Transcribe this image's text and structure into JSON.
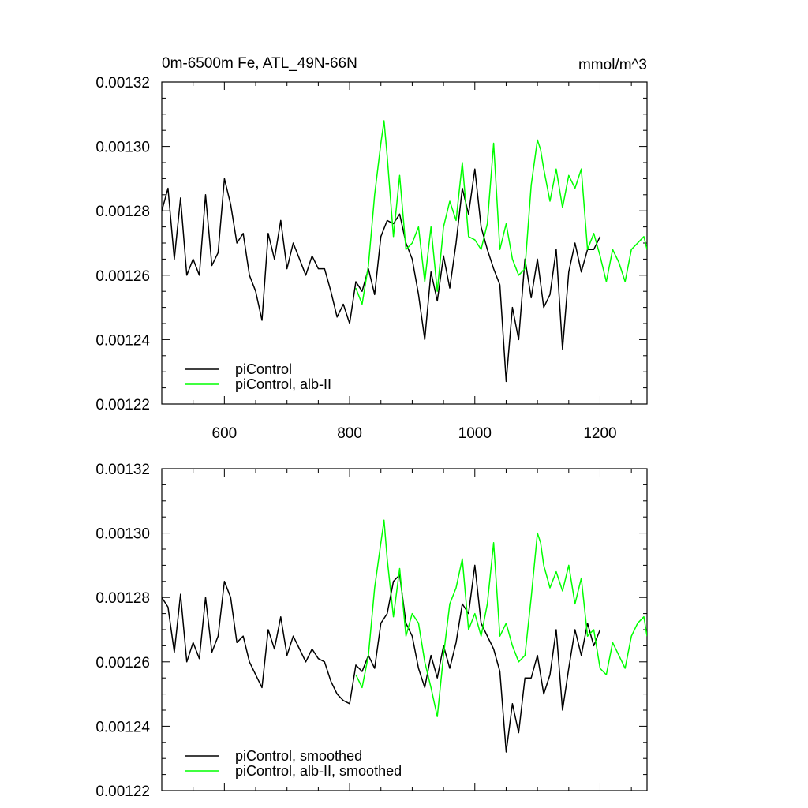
{
  "chart_data": [
    {
      "type": "line",
      "title": "0m-6500m Fe, ATL_49N-66N",
      "units": "mmol/m^3",
      "xlim": [
        500,
        1275
      ],
      "ylim": [
        0.00122,
        0.00132
      ],
      "x_ticks": [
        "600",
        "800",
        "1000",
        "1200"
      ],
      "y_ticks": [
        "0.00122",
        "0.00124",
        "0.00126",
        "0.00128",
        "0.00130",
        "0.00132"
      ],
      "legend_position": "bottom-left",
      "series": [
        {
          "name": "piControl",
          "color": "#000000",
          "x": [
            500,
            510,
            520,
            530,
            540,
            550,
            560,
            570,
            580,
            590,
            600,
            610,
            620,
            630,
            640,
            650,
            660,
            670,
            680,
            690,
            700,
            710,
            720,
            730,
            740,
            750,
            760,
            770,
            780,
            790,
            800,
            810,
            820,
            830,
            840,
            850,
            860,
            870,
            880,
            890,
            900,
            910,
            920,
            930,
            940,
            950,
            960,
            970,
            980,
            990,
            1000,
            1010,
            1020,
            1030,
            1040,
            1050,
            1060,
            1070,
            1080,
            1090,
            1100,
            1110,
            1120,
            1130,
            1140,
            1150,
            1160,
            1170,
            1180,
            1190,
            1200
          ],
          "values": [
            0.00128,
            0.001287,
            0.001265,
            0.001284,
            0.00126,
            0.001265,
            0.00126,
            0.001285,
            0.001263,
            0.001267,
            0.00129,
            0.001282,
            0.00127,
            0.001273,
            0.00126,
            0.001255,
            0.001246,
            0.001273,
            0.001265,
            0.001277,
            0.001262,
            0.00127,
            0.001265,
            0.00126,
            0.001266,
            0.001262,
            0.001262,
            0.001255,
            0.001247,
            0.001251,
            0.001245,
            0.001258,
            0.001255,
            0.001262,
            0.001254,
            0.001272,
            0.001277,
            0.001276,
            0.001279,
            0.00127,
            0.001265,
            0.001254,
            0.00124,
            0.001261,
            0.001252,
            0.001266,
            0.001256,
            0.00127,
            0.001287,
            0.001279,
            0.001293,
            0.001275,
            0.001268,
            0.001262,
            0.001257,
            0.001227,
            0.00125,
            0.00124,
            0.001265,
            0.001253,
            0.001265,
            0.00125,
            0.001254,
            0.001268,
            0.001237,
            0.001261,
            0.00127,
            0.001261,
            0.001268,
            0.001268,
            0.001272
          ]
        },
        {
          "name": "piControl, alb-II",
          "color": "#00ff00",
          "x": [
            810,
            820,
            830,
            840,
            850,
            855,
            860,
            870,
            880,
            890,
            900,
            910,
            920,
            930,
            940,
            950,
            960,
            970,
            980,
            990,
            1000,
            1010,
            1020,
            1030,
            1040,
            1050,
            1060,
            1070,
            1080,
            1090,
            1100,
            1105,
            1110,
            1120,
            1130,
            1140,
            1150,
            1160,
            1170,
            1180,
            1190,
            1200,
            1210,
            1220,
            1230,
            1240,
            1250,
            1260,
            1270,
            1275
          ],
          "values": [
            0.001256,
            0.001251,
            0.001263,
            0.001285,
            0.001301,
            0.001308,
            0.001297,
            0.001272,
            0.001291,
            0.001268,
            0.00127,
            0.001275,
            0.001258,
            0.001275,
            0.001255,
            0.001275,
            0.001283,
            0.001277,
            0.001295,
            0.001272,
            0.001271,
            0.001268,
            0.001276,
            0.001301,
            0.001268,
            0.001276,
            0.001265,
            0.00126,
            0.001262,
            0.001288,
            0.001302,
            0.001299,
            0.001293,
            0.001283,
            0.001293,
            0.001281,
            0.001291,
            0.001287,
            0.001293,
            0.001268,
            0.001273,
            0.001266,
            0.001258,
            0.001268,
            0.001264,
            0.001258,
            0.001268,
            0.00127,
            0.001272,
            0.001268
          ]
        }
      ]
    },
    {
      "type": "line",
      "xlim": [
        500,
        1275
      ],
      "ylim": [
        0.00122,
        0.00132
      ],
      "y_ticks": [
        "0.00122",
        "0.00124",
        "0.00126",
        "0.00128",
        "0.00130",
        "0.00132"
      ],
      "legend_position": "bottom-left",
      "series": [
        {
          "name": "piControl, smoothed",
          "color": "#000000",
          "x": [
            500,
            510,
            520,
            530,
            540,
            550,
            560,
            570,
            580,
            590,
            600,
            610,
            620,
            630,
            640,
            650,
            660,
            670,
            680,
            690,
            700,
            710,
            720,
            730,
            740,
            750,
            760,
            770,
            780,
            790,
            800,
            810,
            820,
            830,
            840,
            850,
            860,
            870,
            880,
            890,
            900,
            910,
            920,
            930,
            940,
            950,
            960,
            970,
            980,
            990,
            1000,
            1010,
            1020,
            1030,
            1040,
            1050,
            1060,
            1070,
            1080,
            1090,
            1100,
            1110,
            1120,
            1130,
            1140,
            1150,
            1160,
            1170,
            1180,
            1190,
            1200
          ],
          "values": [
            0.00128,
            0.001277,
            0.001263,
            0.001281,
            0.00126,
            0.001266,
            0.001261,
            0.00128,
            0.001263,
            0.001268,
            0.001285,
            0.00128,
            0.001266,
            0.001268,
            0.00126,
            0.001256,
            0.001252,
            0.00127,
            0.001264,
            0.001274,
            0.001262,
            0.001268,
            0.001264,
            0.00126,
            0.001264,
            0.001261,
            0.00126,
            0.001254,
            0.00125,
            0.001248,
            0.001247,
            0.001259,
            0.001257,
            0.001262,
            0.001258,
            0.001272,
            0.001275,
            0.001285,
            0.001287,
            0.001272,
            0.001268,
            0.001258,
            0.001252,
            0.001262,
            0.001255,
            0.001265,
            0.001258,
            0.001266,
            0.001278,
            0.001275,
            0.00129,
            0.001272,
            0.001268,
            0.001264,
            0.001257,
            0.001232,
            0.001247,
            0.001238,
            0.001255,
            0.001255,
            0.001262,
            0.00125,
            0.001256,
            0.00127,
            0.001245,
            0.001258,
            0.00127,
            0.001262,
            0.001272,
            0.001265,
            0.00127
          ]
        },
        {
          "name": "piControl, alb-II, smoothed",
          "color": "#00ff00",
          "x": [
            810,
            820,
            830,
            840,
            850,
            855,
            860,
            870,
            880,
            890,
            900,
            910,
            920,
            930,
            940,
            950,
            960,
            970,
            980,
            990,
            1000,
            1010,
            1020,
            1030,
            1040,
            1050,
            1060,
            1070,
            1080,
            1090,
            1100,
            1105,
            1110,
            1120,
            1130,
            1140,
            1150,
            1160,
            1170,
            1180,
            1190,
            1200,
            1210,
            1220,
            1230,
            1240,
            1250,
            1260,
            1270,
            1275
          ],
          "values": [
            0.001256,
            0.001252,
            0.001262,
            0.001283,
            0.001297,
            0.001304,
            0.001292,
            0.001274,
            0.001289,
            0.001268,
            0.001275,
            0.001272,
            0.00126,
            0.001252,
            0.001243,
            0.001262,
            0.001278,
            0.001283,
            0.001292,
            0.00127,
            0.001275,
            0.001268,
            0.001278,
            0.001297,
            0.001268,
            0.001272,
            0.001265,
            0.00126,
            0.001262,
            0.00128,
            0.0013,
            0.001297,
            0.00129,
            0.001283,
            0.001288,
            0.001282,
            0.00129,
            0.001278,
            0.001286,
            0.001268,
            0.00127,
            0.001258,
            0.001256,
            0.001266,
            0.001262,
            0.001258,
            0.001268,
            0.001272,
            0.001274,
            0.001268
          ]
        }
      ]
    }
  ]
}
